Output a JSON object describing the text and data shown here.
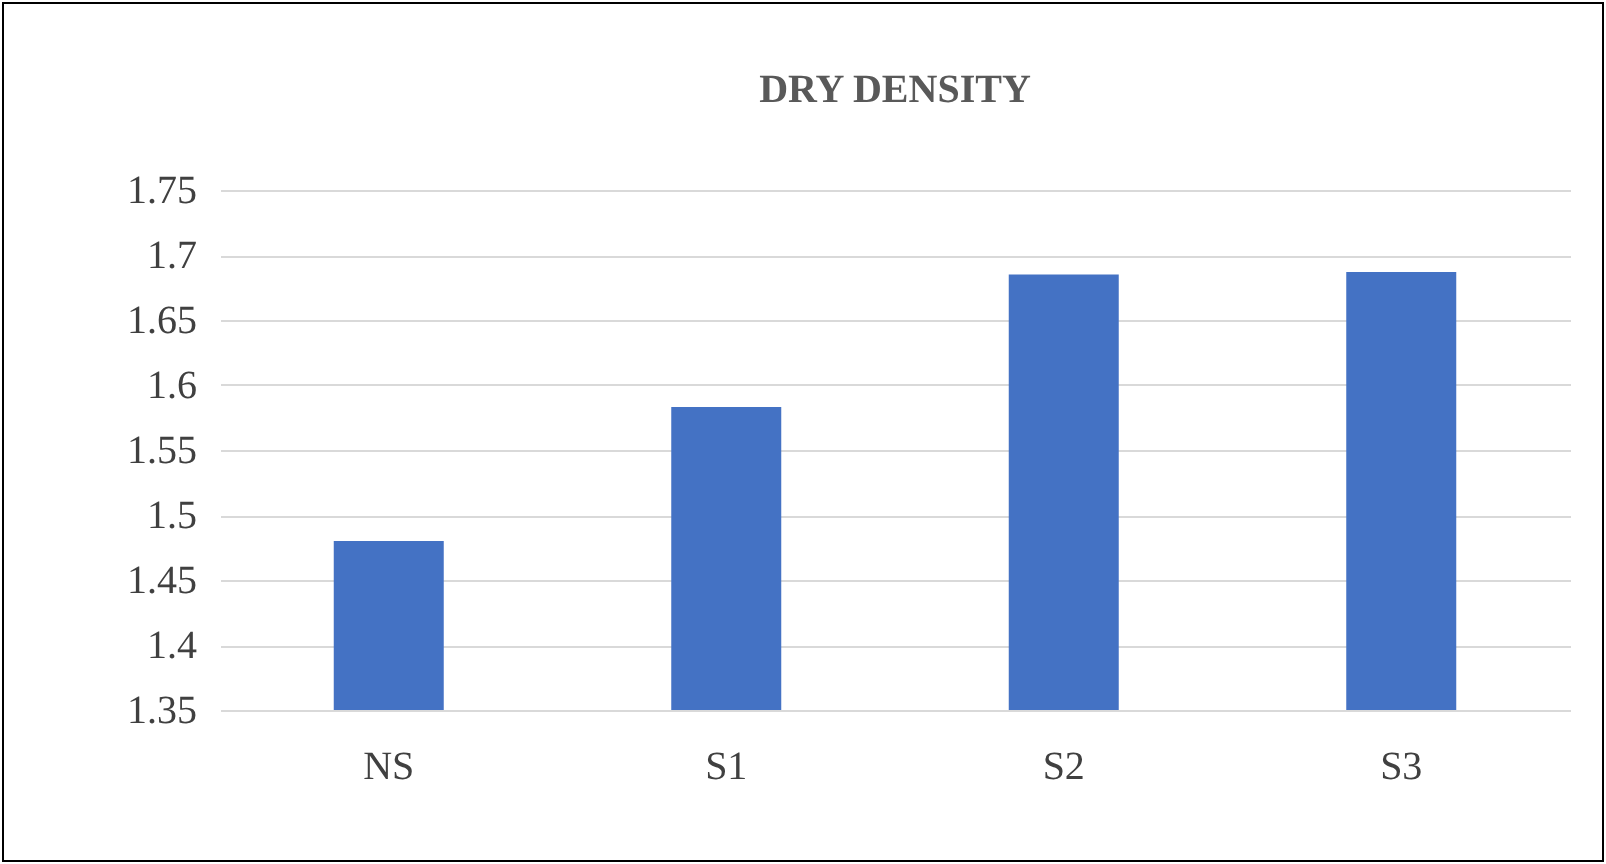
{
  "chart_data": {
    "type": "bar",
    "title": "DRY DENSITY",
    "categories": [
      "NS",
      "S1",
      "S2",
      "S3"
    ],
    "values": [
      1.48,
      1.583,
      1.685,
      1.687
    ],
    "color": "#4472c4",
    "ylim": [
      1.35,
      1.75
    ],
    "yticks": [
      1.35,
      1.4,
      1.45,
      1.5,
      1.55,
      1.6,
      1.65,
      1.7,
      1.75
    ],
    "grid": "y"
  }
}
